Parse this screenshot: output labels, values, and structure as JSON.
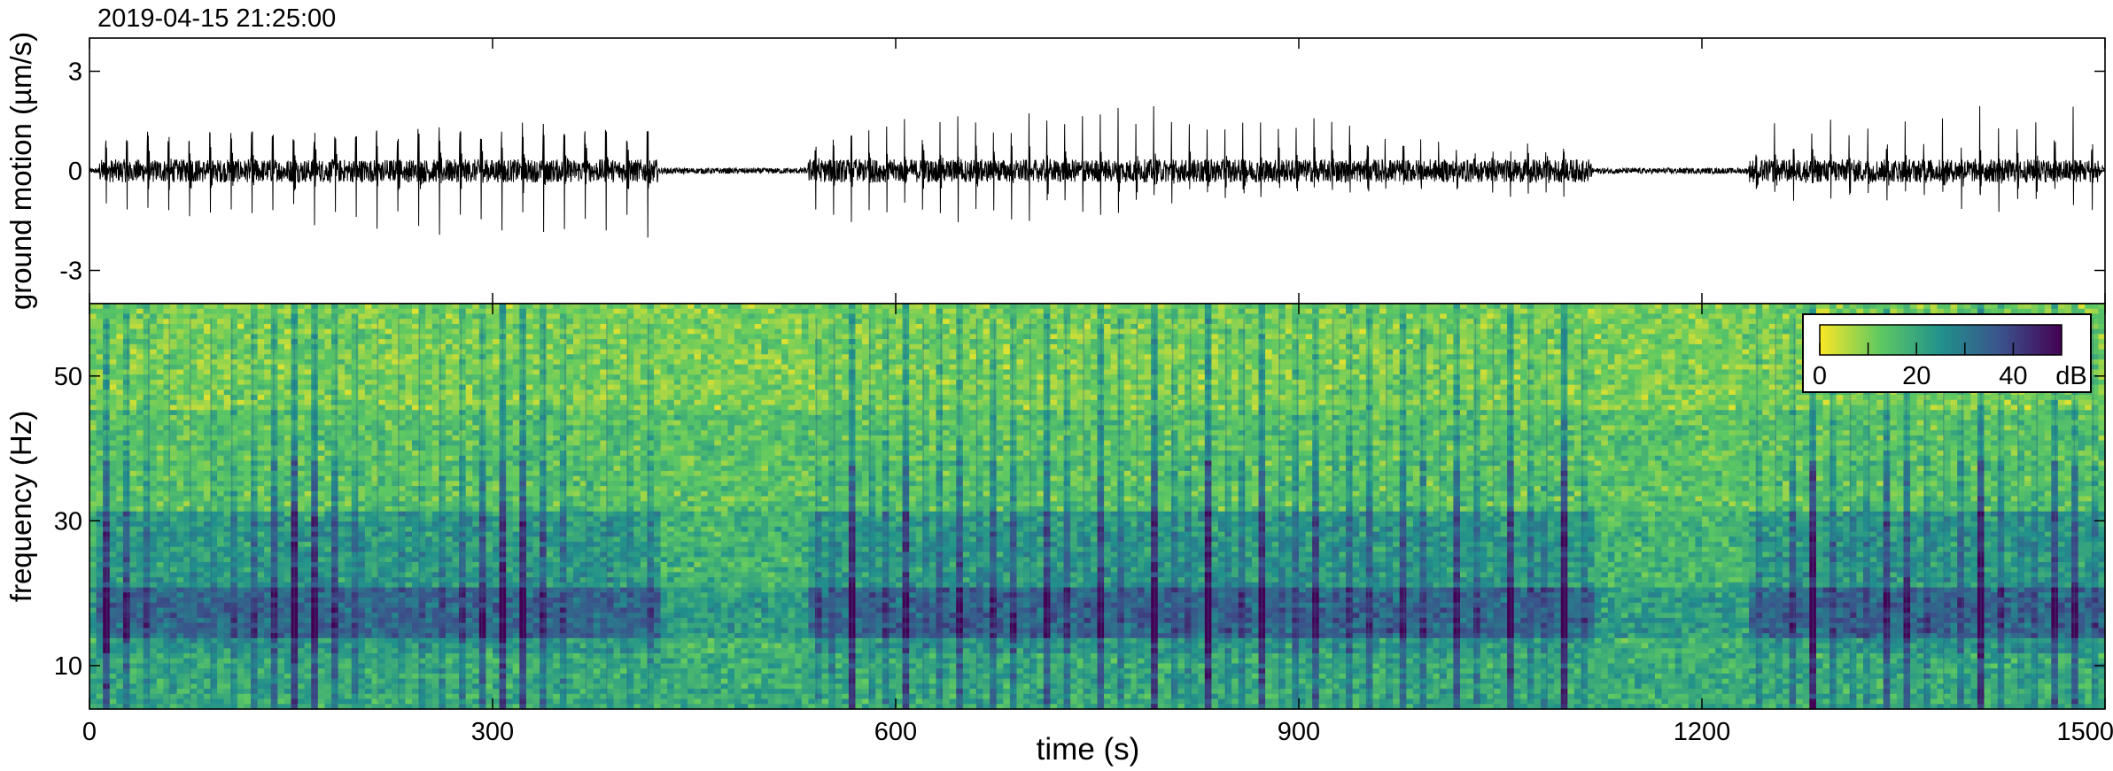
{
  "timestamp": "2019-04-15 21:25:00",
  "chart_data": [
    {
      "type": "line",
      "panel": "seismogram",
      "ylabel": "ground motion (µm/s)",
      "xlim": [
        0,
        1500
      ],
      "ylim": [
        -4,
        4
      ],
      "yticks": [
        {
          "value": 3,
          "label": "3"
        },
        {
          "value": 0,
          "label": "0"
        },
        {
          "value": -3,
          "label": "-3"
        }
      ],
      "xticks": [
        0,
        300,
        600,
        900,
        1200,
        1500
      ],
      "series": [
        {
          "color": "#000000",
          "noise_amplitude": 0.25,
          "pulse_trains": [
            {
              "t_start": 12,
              "t_end": 415,
              "count": 27,
              "amp_start": 2.7,
              "amp_end": 4.0
            },
            {
              "t_start": 540,
              "t_end": 1110,
              "count": 44,
              "amp_start": 2.9,
              "amp_end": 1.1
            },
            {
              "t_start": 1240,
              "t_end": 1490,
              "count": 19,
              "amp_start": 2.0,
              "amp_end": 2.2
            }
          ]
        }
      ]
    },
    {
      "type": "heatmap",
      "panel": "spectrogram",
      "xlabel": "time (s)",
      "ylabel": "frequency (Hz)",
      "xlim": [
        0,
        1500
      ],
      "ylim": [
        4,
        60
      ],
      "xticks": [
        {
          "value": 0,
          "label": "0"
        },
        {
          "value": 300,
          "label": "300"
        },
        {
          "value": 600,
          "label": "600"
        },
        {
          "value": 900,
          "label": "900"
        },
        {
          "value": 1200,
          "label": "1200"
        },
        {
          "value": 1500,
          "label": "1500"
        }
      ],
      "yticks": [
        {
          "value": 50,
          "label": "50"
        },
        {
          "value": 30,
          "label": "30"
        },
        {
          "value": 10,
          "label": "10"
        }
      ],
      "colormap": "viridis_r",
      "colorbar": {
        "range": [
          0,
          50
        ],
        "ticks": [
          {
            "value": 0,
            "label": "0"
          },
          {
            "value": 20,
            "label": "20"
          },
          {
            "value": 40,
            "label": "40"
          }
        ],
        "minor_ticks": [
          10,
          30
        ],
        "unit": "dB",
        "placement": "top-right"
      },
      "band_hz": [
        12,
        31
      ],
      "peak_band_hz": [
        14,
        21
      ]
    }
  ]
}
